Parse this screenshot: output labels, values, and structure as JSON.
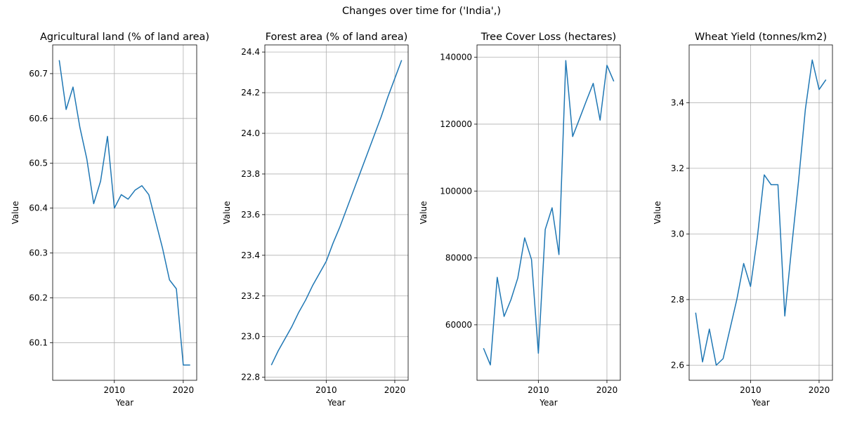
{
  "suptitle": "Changes over time for ('India',)",
  "series_color": "#1f77b4",
  "chart_data": [
    {
      "type": "line",
      "title": "Agricultural land (% of land area)",
      "xlabel": "Year",
      "ylabel": "Value",
      "grid": true,
      "xlim": [
        2001.05,
        2021.95
      ],
      "ylim": [
        60.016,
        60.764
      ],
      "xticks": [
        2010,
        2020
      ],
      "yticks": [
        60.1,
        60.2,
        60.3,
        60.4,
        60.5,
        60.6,
        60.7
      ],
      "ytick_labels": [
        "60.1",
        "60.2",
        "60.3",
        "60.4",
        "60.5",
        "60.6",
        "60.7"
      ],
      "x": [
        2002,
        2003,
        2004,
        2005,
        2006,
        2007,
        2008,
        2009,
        2010,
        2011,
        2012,
        2013,
        2014,
        2015,
        2016,
        2017,
        2018,
        2019,
        2020,
        2021
      ],
      "y": [
        60.73,
        60.62,
        60.67,
        60.58,
        60.51,
        60.41,
        60.46,
        60.56,
        60.4,
        60.43,
        60.42,
        60.44,
        60.45,
        60.43,
        60.37,
        60.31,
        60.24,
        60.22,
        60.05,
        60.05
      ]
    },
    {
      "type": "line",
      "title": "Forest area (% of land area)",
      "xlabel": "Year",
      "ylabel": "Value",
      "grid": true,
      "xlim": [
        2001.05,
        2021.95
      ],
      "ylim": [
        22.785,
        24.435
      ],
      "xticks": [
        2010,
        2020
      ],
      "yticks": [
        22.8,
        23.0,
        23.2,
        23.4,
        23.6,
        23.8,
        24.0,
        24.2,
        24.4
      ],
      "ytick_labels": [
        "22.8",
        "23.0",
        "23.2",
        "23.4",
        "23.6",
        "23.8",
        "24.0",
        "24.2",
        "24.4"
      ],
      "x": [
        2002,
        2003,
        2004,
        2005,
        2006,
        2007,
        2008,
        2009,
        2010,
        2011,
        2012,
        2013,
        2014,
        2015,
        2016,
        2017,
        2018,
        2019,
        2020,
        2021
      ],
      "y": [
        22.86,
        22.93,
        22.99,
        23.05,
        23.12,
        23.18,
        23.25,
        23.31,
        23.37,
        23.46,
        23.54,
        23.63,
        23.72,
        23.81,
        23.9,
        23.99,
        24.08,
        24.18,
        24.27,
        24.36
      ]
    },
    {
      "type": "line",
      "title": "Tree Cover Loss (hectares)",
      "xlabel": "Year",
      "ylabel": "Value",
      "grid": true,
      "xlim": [
        2001.05,
        2021.95
      ],
      "ylim": [
        43400,
        143700
      ],
      "xticks": [
        2010,
        2020
      ],
      "yticks": [
        60000,
        80000,
        100000,
        120000,
        140000
      ],
      "ytick_labels": [
        "60000",
        "80000",
        "100000",
        "120000",
        "140000"
      ],
      "x": [
        2002,
        2003,
        2004,
        2005,
        2006,
        2007,
        2008,
        2009,
        2010,
        2011,
        2012,
        2013,
        2014,
        2015,
        2016,
        2017,
        2018,
        2019,
        2020,
        2021
      ],
      "y": [
        53000,
        48000,
        74200,
        62500,
        67500,
        74000,
        86000,
        79500,
        51500,
        88500,
        95000,
        81000,
        139000,
        116300,
        121600,
        127000,
        132200,
        121200,
        137600,
        132800
      ]
    },
    {
      "type": "line",
      "title": "Wheat Yield (tonnes/km2)",
      "xlabel": "Year",
      "ylabel": "Value",
      "grid": true,
      "xlim": [
        2001.05,
        2021.95
      ],
      "ylim": [
        2.554,
        3.576
      ],
      "xticks": [
        2010,
        2020
      ],
      "yticks": [
        2.6,
        2.8,
        3.0,
        3.2,
        3.4
      ],
      "ytick_labels": [
        "2.6",
        "2.8",
        "3.0",
        "3.2",
        "3.4"
      ],
      "x": [
        2002,
        2003,
        2004,
        2005,
        2006,
        2007,
        2008,
        2009,
        2010,
        2011,
        2012,
        2013,
        2014,
        2015,
        2016,
        2017,
        2018,
        2019,
        2020,
        2021
      ],
      "y": [
        2.76,
        2.61,
        2.71,
        2.6,
        2.62,
        2.71,
        2.8,
        2.91,
        2.84,
        2.99,
        3.18,
        3.15,
        3.15,
        2.75,
        2.96,
        3.16,
        3.38,
        3.53,
        3.44,
        3.47
      ]
    }
  ]
}
